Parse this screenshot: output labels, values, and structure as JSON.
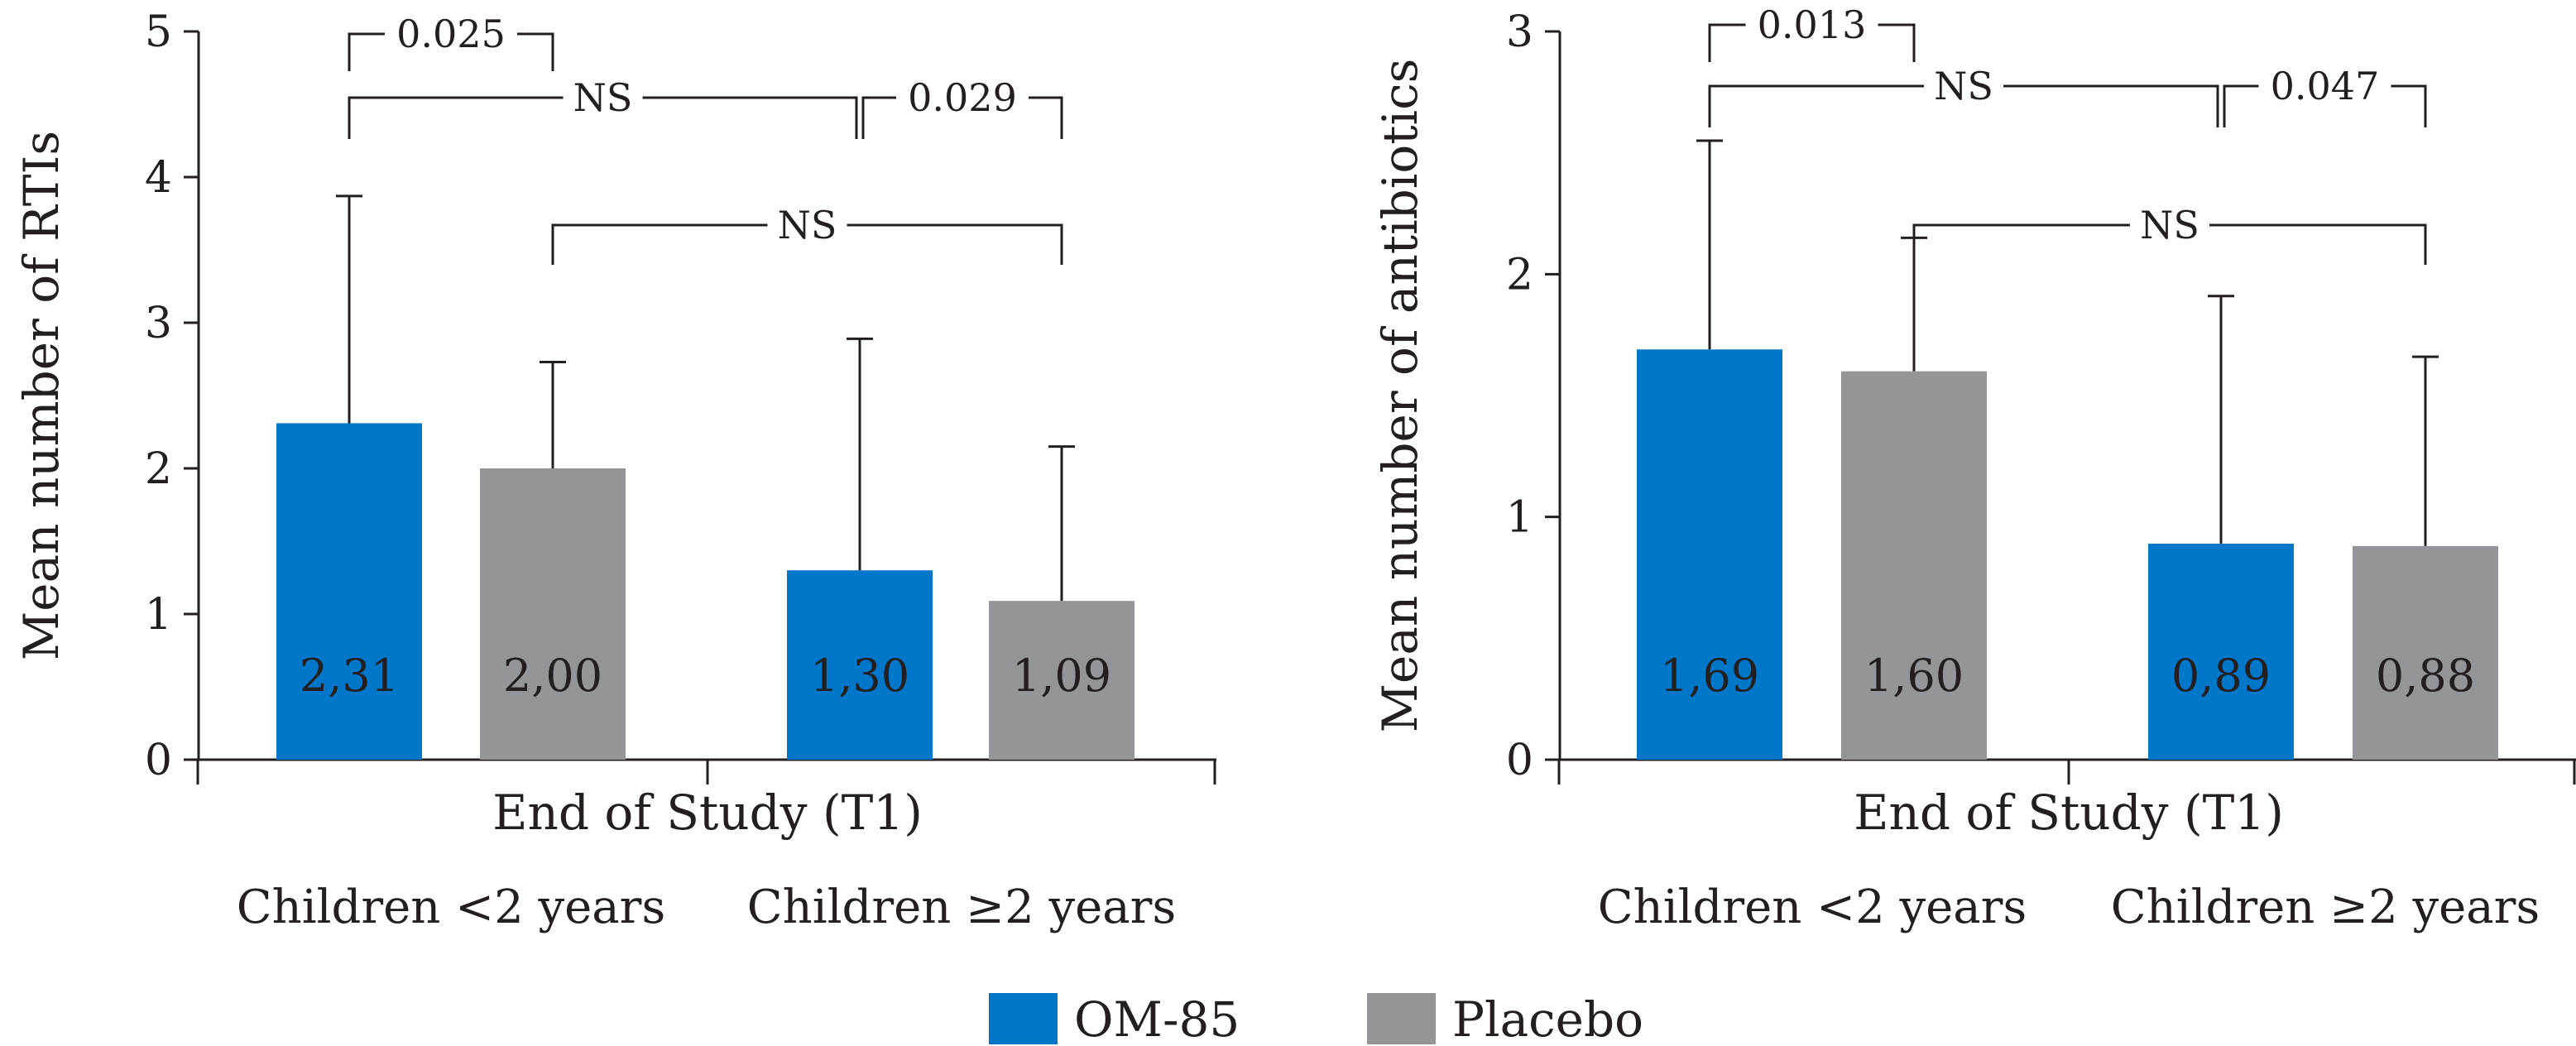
{
  "legend": [
    {
      "label": "OM-85",
      "color": "#0077c8"
    },
    {
      "label": "Placebo",
      "color": "#939598"
    }
  ],
  "chart_data": [
    {
      "type": "bar",
      "ylabel": "Mean number of RTIs",
      "xlabel": "End of Study (T1)",
      "ylim": [
        0,
        5
      ],
      "yticks": [
        "0",
        "1",
        "2",
        "3",
        "4",
        "5"
      ],
      "categories": [
        "Children <2 years",
        "Children ≥2 years"
      ],
      "series": [
        {
          "name": "OM-85",
          "values": [
            2.31,
            1.3
          ],
          "error_upper": [
            3.87,
            2.89
          ],
          "labels": [
            "2,31",
            "1,30"
          ]
        },
        {
          "name": "Placebo",
          "values": [
            2.0,
            1.09
          ],
          "error_upper": [
            2.73,
            2.15
          ],
          "labels": [
            "2,00",
            "1,09"
          ]
        }
      ],
      "annotations": [
        {
          "label": "0.025",
          "from": [
            0,
            0
          ],
          "to": [
            1,
            0
          ]
        },
        {
          "label": "NS",
          "from": [
            0,
            0
          ],
          "to": [
            0,
            1
          ]
        },
        {
          "label": "0.029",
          "from": [
            0,
            1
          ],
          "to": [
            1,
            1
          ]
        },
        {
          "label": "NS",
          "from": [
            1,
            0
          ],
          "to": [
            1,
            1
          ]
        }
      ]
    },
    {
      "type": "bar",
      "ylabel": "Mean number of antibiotics",
      "xlabel": "End of Study (T1)",
      "ylim": [
        0,
        3
      ],
      "yticks": [
        "0",
        "1",
        "2",
        "3"
      ],
      "categories": [
        "Children <2 years",
        "Children ≥2 years"
      ],
      "series": [
        {
          "name": "OM-85",
          "values": [
            1.69,
            0.89
          ],
          "error_upper": [
            2.55,
            1.91
          ],
          "labels": [
            "1,69",
            "0,89"
          ]
        },
        {
          "name": "Placebo",
          "values": [
            1.6,
            0.88
          ],
          "error_upper": [
            2.15,
            1.66
          ],
          "labels": [
            "1,60",
            "0,88"
          ]
        }
      ],
      "annotations": [
        {
          "label": "0.013",
          "from": [
            0,
            0
          ],
          "to": [
            1,
            0
          ]
        },
        {
          "label": "NS",
          "from": [
            0,
            0
          ],
          "to": [
            0,
            1
          ]
        },
        {
          "label": "0.047",
          "from": [
            0,
            1
          ],
          "to": [
            1,
            1
          ]
        },
        {
          "label": "NS",
          "from": [
            1,
            0
          ],
          "to": [
            1,
            1
          ]
        }
      ]
    }
  ]
}
